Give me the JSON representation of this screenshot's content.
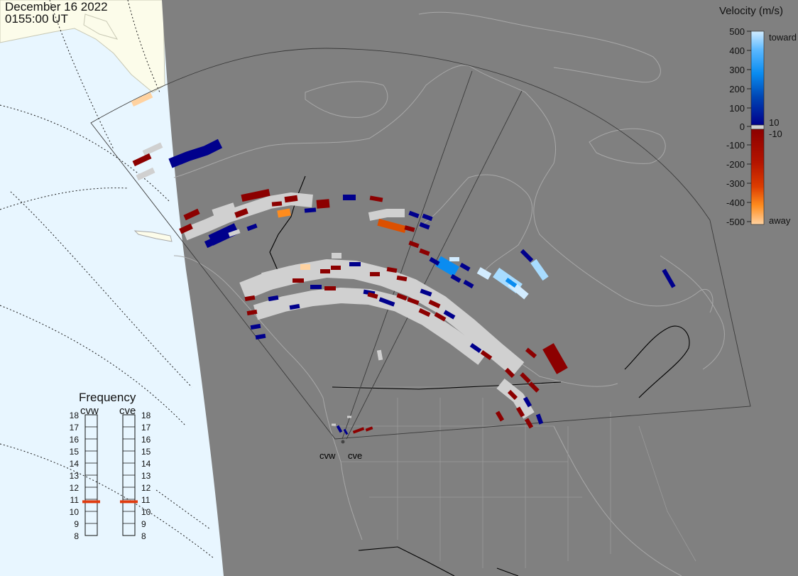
{
  "header": {
    "date": "December 16 2022",
    "time": "0155:00 UT"
  },
  "velocity_legend": {
    "title": "Velocity (m/s)",
    "ticks": [
      "500",
      "400",
      "300",
      "200",
      "100",
      "0",
      "-100",
      "-200",
      "-300",
      "-400",
      "-500"
    ],
    "toward_label": "toward",
    "away_label": "away",
    "pos_threshold": "10",
    "neg_threshold": "-10",
    "colors": {
      "toward_max": "#d2ecff",
      "toward_mid": "#0a8cf0",
      "toward_min": "#00008c",
      "away_min": "#8c0000",
      "away_mid": "#dc3c00",
      "away_max": "#ffd2a0",
      "ground_scatter": "#d0d0d0"
    }
  },
  "frequency_panel": {
    "title": "Frequency",
    "radars": [
      {
        "code": "cvw",
        "freq_mhz": 10.8
      },
      {
        "code": "cve",
        "freq_mhz": 10.8
      }
    ],
    "scale": [
      "18",
      "17",
      "16",
      "15",
      "14",
      "13",
      "12",
      "11",
      "10",
      "9",
      "8"
    ],
    "marker_color": "#e03c10"
  },
  "radar_sites": [
    {
      "code": "cvw"
    },
    {
      "code": "cve"
    }
  ],
  "map_colors": {
    "night": "#808080",
    "day_ocean": "#e8f6ff",
    "day_land": "#fcfcea",
    "coast": "#a8a8a8"
  }
}
